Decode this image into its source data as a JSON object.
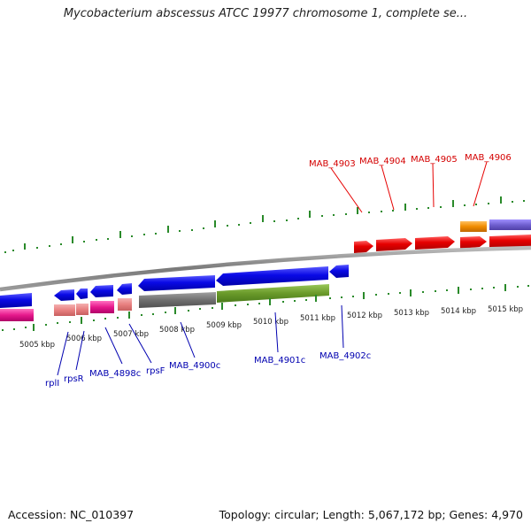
{
  "title": "Mycobacterium abscessus ATCC 19977 chromosome 1, complete se...",
  "footer": {
    "accession": "Accession: NC_010397",
    "summary": "Topology: circular; Length: 5,067,172 bp; Genes: 4,970"
  },
  "scale_labels": [
    "5005 kbp",
    "5006 kbp",
    "5007 kbp",
    "5008 kbp",
    "5009 kbp",
    "5010 kbp",
    "5011 kbp",
    "5012 kbp",
    "5013 kbp",
    "5014 kbp",
    "5015 kbp"
  ],
  "genes_upper": [
    "MAB_4903",
    "MAB_4904",
    "MAB_4905",
    "MAB_4906"
  ],
  "genes_lower": [
    "rplI",
    "rpsR",
    "MAB_4898c",
    "rpsF",
    "MAB_4900c",
    "MAB_4901c",
    "MAB_4902c"
  ],
  "colors": {
    "forward_gene": "#e60000",
    "reverse_gene": "#0a0ae6",
    "orange_feature": "#f08c00",
    "purple_feature": "#7060d0",
    "pink_feature": "#e6198c",
    "salmon_feature": "#e88080",
    "gray_feature": "#707070",
    "olive_feature": "#6a9a2a",
    "tick": "#2a8a2a",
    "backbone": "#8a8a8a"
  }
}
